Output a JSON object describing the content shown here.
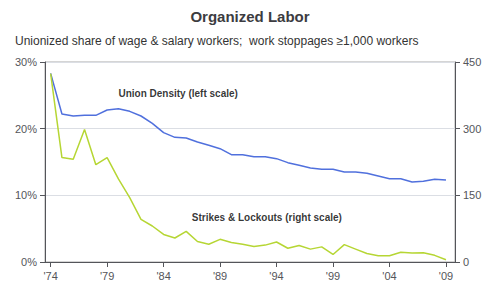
{
  "chart_data": {
    "type": "line",
    "title": "Organized Labor",
    "subtitle": "Unionized share of wage & salary workers;  work stoppages ≥1,000 workers",
    "x": [
      1974,
      1975,
      1976,
      1977,
      1978,
      1979,
      1980,
      1981,
      1982,
      1983,
      1984,
      1985,
      1986,
      1987,
      1988,
      1989,
      1990,
      1991,
      1992,
      1993,
      1994,
      1995,
      1996,
      1997,
      1998,
      1999,
      2000,
      2001,
      2002,
      2003,
      2004,
      2005,
      2006,
      2007,
      2008,
      2009
    ],
    "series": [
      {
        "axis": "y",
        "values": [
          28.3,
          22.2,
          21.9,
          22.0,
          22.0,
          22.8,
          23.0,
          22.6,
          21.9,
          20.8,
          19.4,
          18.7,
          18.6,
          18.0,
          17.5,
          17.0,
          16.1,
          16.1,
          15.8,
          15.8,
          15.5,
          14.9,
          14.5,
          14.1,
          13.9,
          13.9,
          13.5,
          13.5,
          13.3,
          12.9,
          12.5,
          12.5,
          12.0,
          12.1,
          12.4,
          12.3
        ]
      },
      {
        "axis": "y2",
        "values": [
          424,
          235,
          231,
          298,
          219,
          235,
          187,
          145,
          96,
          81,
          62,
          54,
          69,
          46,
          40,
          51,
          44,
          40,
          35,
          38,
          45,
          31,
          37,
          29,
          34,
          17,
          39,
          29,
          19,
          14,
          14,
          22,
          20,
          21,
          15,
          5
        ]
      }
    ],
    "xlim": [
      1973.5,
      2009.8
    ],
    "xticks": [
      {
        "value": 1974,
        "label": "'74"
      },
      {
        "value": 1979,
        "label": "'79"
      },
      {
        "value": 1984,
        "label": "'84"
      },
      {
        "value": 1989,
        "label": "'89"
      },
      {
        "value": 1994,
        "label": "'94"
      },
      {
        "value": 1999,
        "label": "'99"
      },
      {
        "value": 2004,
        "label": "'04"
      },
      {
        "value": 2009,
        "label": "'09"
      }
    ],
    "ylim": [
      0,
      30
    ],
    "yticks": [
      {
        "value": 0,
        "label": "0%"
      },
      {
        "value": 10,
        "label": "10%"
      },
      {
        "value": 20,
        "label": "20%"
      },
      {
        "value": 30,
        "label": "30%"
      }
    ],
    "y2lim": [
      0,
      450
    ],
    "y2ticks": [
      0,
      150,
      300,
      450
    ],
    "grid": true,
    "annotations": [
      {
        "text": "Union Density (left scale)",
        "x": 1980.0,
        "y": 24.5
      },
      {
        "text": "Strikes & Lockouts (right scale)",
        "x": 1986.5,
        "y": 6.0
      }
    ]
  }
}
